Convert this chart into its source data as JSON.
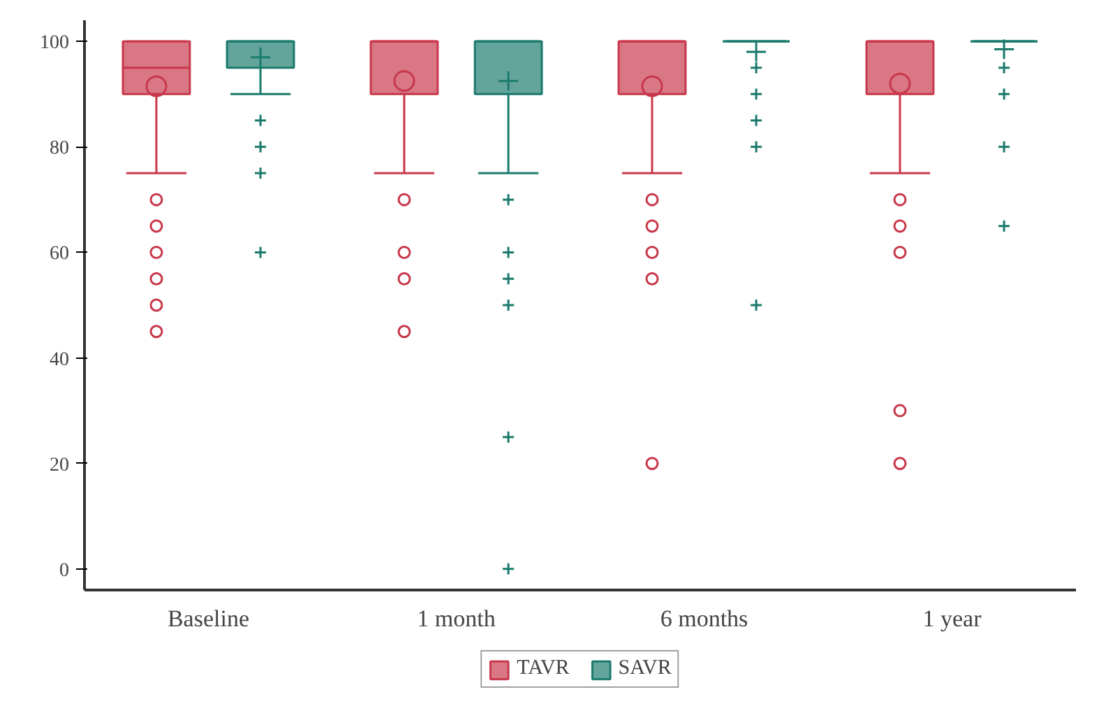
{
  "chart_data": {
    "type": "box",
    "categories": [
      "Baseline",
      "1 month",
      "6 months",
      "1 year"
    ],
    "ylim": [
      -4,
      104
    ],
    "yticks": [
      0,
      20,
      40,
      60,
      80,
      100
    ],
    "grid": false,
    "legend": "bottom",
    "series": [
      {
        "name": "TAVR",
        "color": "#c8374a",
        "marker": "circle",
        "boxes": [
          {
            "low": 75,
            "q1": 90,
            "median": 95,
            "q3": 100,
            "high": 100,
            "mean": 91.5,
            "outliers": [
              70,
              65,
              60,
              55,
              50,
              45
            ]
          },
          {
            "low": 75,
            "q1": 90,
            "median": 100,
            "q3": 100,
            "high": 100,
            "mean": 92.5,
            "outliers": [
              70,
              60,
              55,
              45
            ]
          },
          {
            "low": 75,
            "q1": 90,
            "median": 100,
            "q3": 100,
            "high": 100,
            "mean": 91.5,
            "outliers": [
              70,
              65,
              60,
              55,
              20
            ]
          },
          {
            "low": 75,
            "q1": 90,
            "median": 100,
            "q3": 100,
            "high": 100,
            "mean": 92,
            "outliers": [
              70,
              65,
              60,
              30,
              20
            ]
          }
        ]
      },
      {
        "name": "SAVR",
        "color": "#1a7a6c",
        "marker": "cross",
        "boxes": [
          {
            "low": 90,
            "q1": 95,
            "median": 100,
            "q3": 100,
            "high": 100,
            "mean": 97,
            "outliers": [
              85,
              80,
              75,
              60
            ]
          },
          {
            "low": 75,
            "q1": 90,
            "median": 100,
            "q3": 100,
            "high": 100,
            "mean": 92.5,
            "outliers": [
              70,
              60,
              55,
              50,
              25,
              0
            ]
          },
          {
            "low": 100,
            "q1": 100,
            "median": 100,
            "q3": 100,
            "high": 100,
            "mean": 98,
            "outliers": [
              95,
              90,
              85,
              80,
              50
            ]
          },
          {
            "low": 100,
            "q1": 100,
            "median": 100,
            "q3": 100,
            "high": 100,
            "mean": 98.5,
            "outliers": [
              95,
              90,
              80,
              65
            ]
          }
        ]
      }
    ]
  }
}
